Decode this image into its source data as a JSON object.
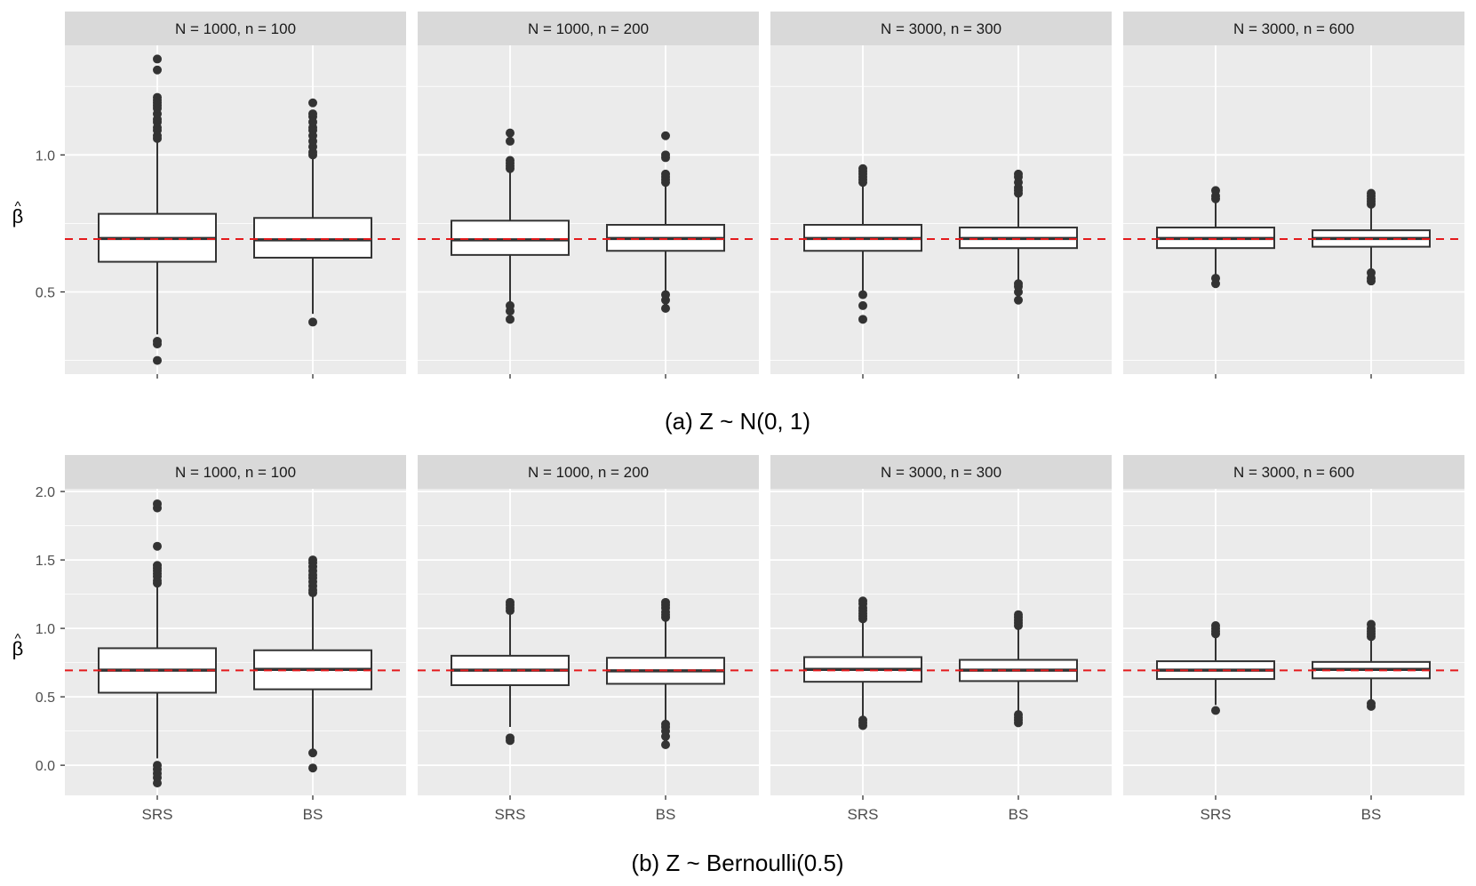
{
  "chart_data": [
    {
      "type": "boxplot",
      "caption": "(a) Z ~ N(0, 1)",
      "ylabel_symbol": "β",
      "ylabel_hat": "^",
      "ylim": [
        0.2,
        1.4
      ],
      "yticks": [
        0.5,
        1.0
      ],
      "ytick_labels": [
        "0.5",
        "1.0"
      ],
      "yminor": [
        0.25,
        0.75,
        1.25
      ],
      "reference_line": 0.693,
      "reference_color": "#e41a1c",
      "show_x_labels": false,
      "categories": [
        "SRS",
        "BS"
      ],
      "panels": [
        {
          "title": "N = 1000, n = 100",
          "boxes": [
            {
              "label": "SRS",
              "q1": 0.61,
              "median": 0.695,
              "q3": 0.785,
              "whisker_low": 0.345,
              "whisker_high": 1.045,
              "outliers": [
                0.25,
                0.31,
                0.32,
                1.06,
                1.07,
                1.09,
                1.1,
                1.12,
                1.13,
                1.15,
                1.17,
                1.18,
                1.19,
                1.2,
                1.21,
                1.31,
                1.35
              ]
            },
            {
              "label": "BS",
              "q1": 0.625,
              "median": 0.69,
              "q3": 0.77,
              "whisker_low": 0.42,
              "whisker_high": 0.99,
              "outliers": [
                0.39,
                1.0,
                1.01,
                1.03,
                1.05,
                1.07,
                1.09,
                1.1,
                1.12,
                1.14,
                1.15,
                1.19
              ]
            }
          ]
        },
        {
          "title": "N = 1000, n = 200",
          "boxes": [
            {
              "label": "SRS",
              "q1": 0.635,
              "median": 0.69,
              "q3": 0.76,
              "whisker_low": 0.46,
              "whisker_high": 0.94,
              "outliers": [
                0.4,
                0.43,
                0.45,
                0.95,
                0.96,
                0.97,
                0.98,
                1.05,
                1.08
              ]
            },
            {
              "label": "BS",
              "q1": 0.65,
              "median": 0.695,
              "q3": 0.745,
              "whisker_low": 0.5,
              "whisker_high": 0.89,
              "outliers": [
                0.44,
                0.47,
                0.49,
                0.9,
                0.91,
                0.92,
                0.93,
                0.99,
                1.0,
                1.07
              ]
            }
          ]
        },
        {
          "title": "N = 3000, n = 300",
          "boxes": [
            {
              "label": "SRS",
              "q1": 0.65,
              "median": 0.695,
              "q3": 0.745,
              "whisker_low": 0.5,
              "whisker_high": 0.89,
              "outliers": [
                0.4,
                0.45,
                0.49,
                0.9,
                0.91,
                0.92,
                0.93,
                0.94,
                0.95
              ]
            },
            {
              "label": "BS",
              "q1": 0.66,
              "median": 0.695,
              "q3": 0.735,
              "whisker_low": 0.54,
              "whisker_high": 0.85,
              "outliers": [
                0.47,
                0.5,
                0.52,
                0.53,
                0.86,
                0.87,
                0.88,
                0.9,
                0.92,
                0.93
              ]
            }
          ]
        },
        {
          "title": "N = 3000, n = 600",
          "boxes": [
            {
              "label": "SRS",
              "q1": 0.66,
              "median": 0.695,
              "q3": 0.735,
              "whisker_low": 0.56,
              "whisker_high": 0.83,
              "outliers": [
                0.53,
                0.55,
                0.84,
                0.85,
                0.87
              ]
            },
            {
              "label": "BS",
              "q1": 0.665,
              "median": 0.695,
              "q3": 0.725,
              "whisker_low": 0.58,
              "whisker_high": 0.81,
              "outliers": [
                0.54,
                0.55,
                0.57,
                0.82,
                0.83,
                0.84,
                0.85,
                0.86
              ]
            }
          ]
        }
      ]
    },
    {
      "type": "boxplot",
      "caption": "(b) Z ~ Bernoulli(0.5)",
      "ylabel_symbol": "β",
      "ylabel_hat": "^",
      "ylim": [
        -0.22,
        2.02
      ],
      "yticks": [
        0.0,
        0.5,
        1.0,
        1.5,
        2.0
      ],
      "ytick_labels": [
        "0.0",
        "0.5",
        "1.0",
        "1.5",
        "2.0"
      ],
      "yminor": [
        0.25,
        0.75,
        1.25,
        1.75
      ],
      "reference_line": 0.693,
      "reference_color": "#e41a1c",
      "show_x_labels": true,
      "categories": [
        "SRS",
        "BS"
      ],
      "panels": [
        {
          "title": "N = 1000, n = 100",
          "boxes": [
            {
              "label": "SRS",
              "q1": 0.53,
              "median": 0.695,
              "q3": 0.855,
              "whisker_low": 0.05,
              "whisker_high": 1.32,
              "outliers": [
                -0.13,
                -0.09,
                -0.06,
                -0.03,
                0.0,
                1.33,
                1.35,
                1.38,
                1.4,
                1.42,
                1.44,
                1.46,
                1.6,
                1.88,
                1.91
              ]
            },
            {
              "label": "BS",
              "q1": 0.555,
              "median": 0.7,
              "q3": 0.84,
              "whisker_low": 0.12,
              "whisker_high": 1.25,
              "outliers": [
                -0.02,
                0.09,
                1.26,
                1.28,
                1.31,
                1.34,
                1.37,
                1.39,
                1.42,
                1.45,
                1.48,
                1.5
              ]
            }
          ]
        },
        {
          "title": "N = 1000, n = 200",
          "boxes": [
            {
              "label": "SRS",
              "q1": 0.585,
              "median": 0.695,
              "q3": 0.8,
              "whisker_low": 0.28,
              "whisker_high": 1.1,
              "outliers": [
                0.18,
                0.2,
                1.13,
                1.15,
                1.17,
                1.19
              ]
            },
            {
              "label": "BS",
              "q1": 0.595,
              "median": 0.69,
              "q3": 0.785,
              "whisker_low": 0.32,
              "whisker_high": 1.06,
              "outliers": [
                0.15,
                0.21,
                0.25,
                0.28,
                0.3,
                1.08,
                1.1,
                1.12,
                1.15,
                1.17,
                1.19
              ]
            }
          ]
        },
        {
          "title": "N = 3000, n = 300",
          "boxes": [
            {
              "label": "SRS",
              "q1": 0.61,
              "median": 0.7,
              "q3": 0.79,
              "whisker_low": 0.34,
              "whisker_high": 1.06,
              "outliers": [
                0.29,
                0.31,
                0.33,
                1.07,
                1.09,
                1.11,
                1.13,
                1.15,
                1.18,
                1.2
              ]
            },
            {
              "label": "BS",
              "q1": 0.615,
              "median": 0.695,
              "q3": 0.77,
              "whisker_low": 0.39,
              "whisker_high": 1.0,
              "outliers": [
                0.31,
                0.33,
                0.35,
                0.37,
                1.02,
                1.04,
                1.06,
                1.08,
                1.1
              ]
            }
          ]
        },
        {
          "title": "N = 3000, n = 600",
          "boxes": [
            {
              "label": "SRS",
              "q1": 0.63,
              "median": 0.695,
              "q3": 0.76,
              "whisker_low": 0.44,
              "whisker_high": 0.95,
              "outliers": [
                0.4,
                0.96,
                0.98,
                1.0,
                1.02
              ]
            },
            {
              "label": "BS",
              "q1": 0.635,
              "median": 0.7,
              "q3": 0.755,
              "whisker_low": 0.46,
              "whisker_high": 0.93,
              "outliers": [
                0.43,
                0.45,
                0.94,
                0.96,
                0.98,
                1.0,
                1.03
              ]
            }
          ]
        }
      ]
    }
  ]
}
